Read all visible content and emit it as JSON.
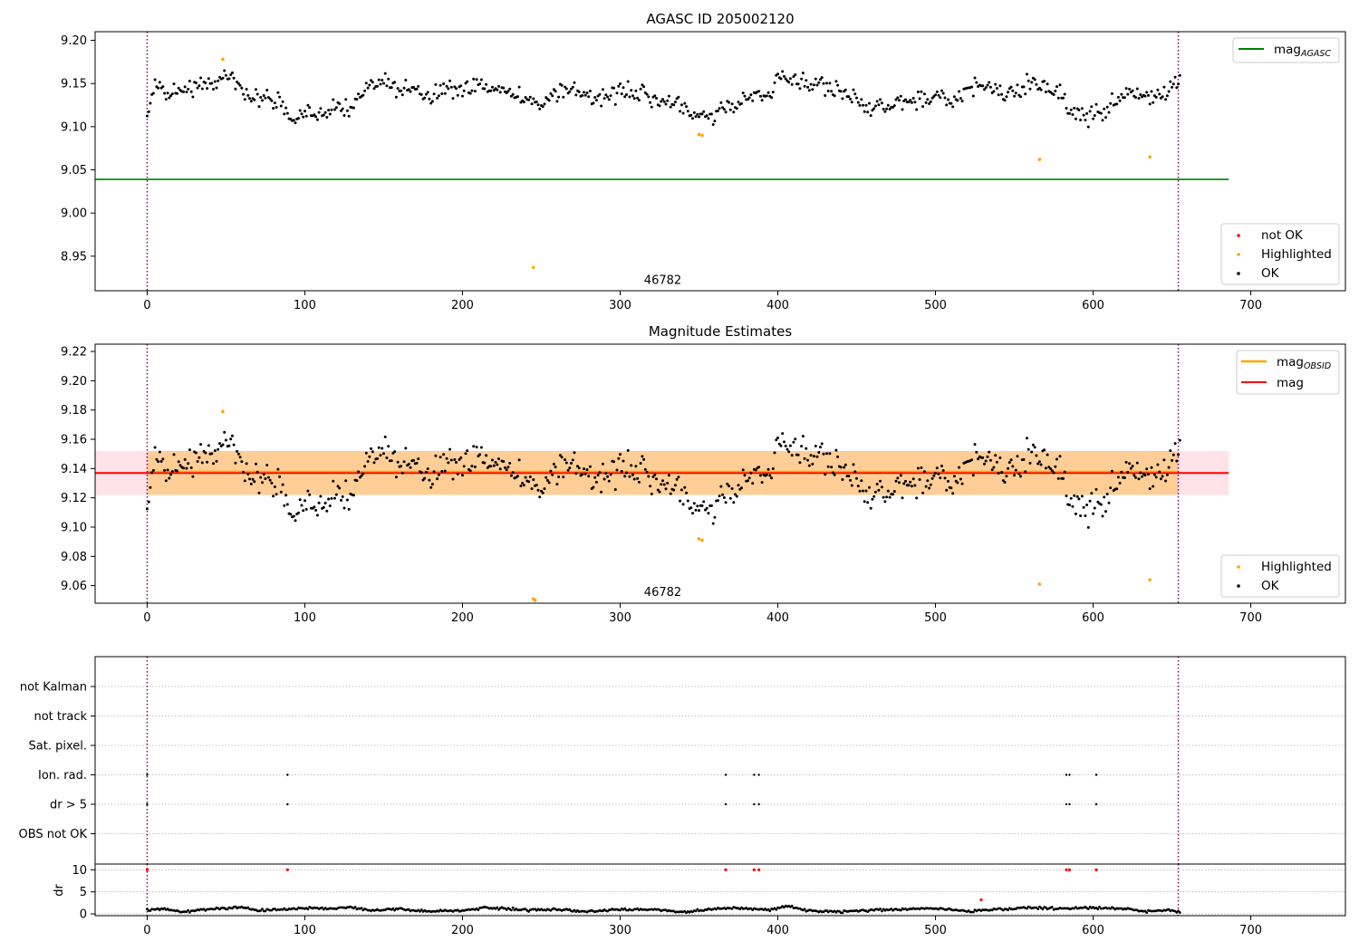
{
  "chart_data": [
    {
      "id": "mag_top",
      "type": "scatter",
      "title": "AGASC ID 205002120",
      "xlim": [
        -33,
        760
      ],
      "ylim": [
        8.91,
        9.21
      ],
      "xticks": [
        0,
        100,
        200,
        300,
        400,
        500,
        600,
        700
      ],
      "yticks": [
        8.95,
        9.0,
        9.05,
        9.1,
        9.15,
        9.2
      ],
      "ytick_labels": [
        "8.95",
        "9.00",
        "9.05",
        "9.10",
        "9.15",
        "9.20"
      ],
      "vlines": [
        0,
        654
      ],
      "hlines": [
        {
          "name": "mag_AGASC",
          "y": 9.039,
          "x_range": [
            -33,
            686
          ],
          "color": "#008000"
        }
      ],
      "ok_series": {
        "name": "OK",
        "color": "#000000",
        "x_range": [
          0,
          655
        ],
        "count": 656,
        "profile_x": [
          0,
          5,
          15,
          25,
          35,
          45,
          55,
          65,
          75,
          85,
          92,
          100,
          110,
          120,
          130,
          140,
          150,
          160,
          170,
          180,
          190,
          200,
          210,
          220,
          230,
          240,
          250,
          260,
          270,
          280,
          290,
          300,
          310,
          320,
          330,
          340,
          345,
          355,
          365,
          375,
          385,
          395,
          400,
          410,
          420,
          430,
          440,
          450,
          460,
          470,
          480,
          490,
          500,
          510,
          520,
          530,
          540,
          550,
          560,
          570,
          580,
          585,
          595,
          605,
          615,
          625,
          635,
          645,
          650,
          655
        ],
        "profile_y": [
          9.118,
          9.15,
          9.135,
          9.145,
          9.148,
          9.152,
          9.155,
          9.135,
          9.135,
          9.128,
          9.108,
          9.118,
          9.112,
          9.12,
          9.12,
          9.148,
          9.155,
          9.14,
          9.142,
          9.135,
          9.14,
          9.142,
          9.148,
          9.142,
          9.142,
          9.132,
          9.128,
          9.138,
          9.148,
          9.128,
          9.135,
          9.142,
          9.138,
          9.132,
          9.128,
          9.125,
          9.115,
          9.112,
          9.12,
          9.128,
          9.138,
          9.135,
          9.152,
          9.155,
          9.15,
          9.148,
          9.14,
          9.132,
          9.12,
          9.125,
          9.128,
          9.132,
          9.135,
          9.128,
          9.145,
          9.15,
          9.14,
          9.138,
          9.155,
          9.148,
          9.138,
          9.118,
          9.112,
          9.115,
          9.13,
          9.142,
          9.135,
          9.138,
          9.152,
          9.152
        ],
        "scatter_amplitude": 0.008,
        "seed": 205002120
      },
      "highlighted_points": {
        "name": "Highlighted",
        "color": "#ffa500",
        "x": [
          48,
          350,
          352,
          245,
          566,
          636
        ],
        "y": [
          9.178,
          9.091,
          9.09,
          8.937,
          9.062,
          9.065
        ]
      },
      "annotations": [
        {
          "text": "46782",
          "x": 327,
          "y": 8.918
        }
      ],
      "legend_upper": {
        "position": "upper right",
        "entries": [
          {
            "label": "mag",
            "subscript": "AGASC",
            "color": "#008000",
            "marker": "line"
          }
        ]
      },
      "legend_lower": {
        "position": "lower right",
        "entries": [
          {
            "label": "not OK",
            "color": "#ff0000",
            "marker": "dot"
          },
          {
            "label": "Highlighted",
            "color": "#ffa500",
            "marker": "dot"
          },
          {
            "label": "OK",
            "color": "#000000",
            "marker": "dot"
          }
        ]
      }
    },
    {
      "id": "mag_estimates",
      "type": "scatter",
      "title": "Magnitude Estimates",
      "xlim": [
        -33,
        760
      ],
      "ylim": [
        9.048,
        9.225
      ],
      "xticks": [
        0,
        100,
        200,
        300,
        400,
        500,
        600,
        700
      ],
      "yticks": [
        9.06,
        9.08,
        9.1,
        9.12,
        9.14,
        9.16,
        9.18,
        9.2,
        9.22
      ],
      "ytick_labels": [
        "9.06",
        "9.08",
        "9.10",
        "9.12",
        "9.14",
        "9.16",
        "9.18",
        "9.20",
        "9.22"
      ],
      "vlines": [
        0,
        654
      ],
      "bands": [
        {
          "name": "mag range",
          "y_range": [
            9.122,
            9.152
          ],
          "x_range": [
            -33,
            686
          ],
          "color": "#ffc0cb"
        },
        {
          "name": "mag_OBSID range",
          "y_range": [
            9.122,
            9.152
          ],
          "x_range": [
            0,
            654
          ],
          "color": "#ffa500"
        }
      ],
      "hlines": [
        {
          "name": "mag",
          "y": 9.137,
          "x_range": [
            -33,
            686
          ],
          "color": "#ff0000"
        },
        {
          "name": "mag_OBSID",
          "y": 9.138,
          "x_range": [
            0,
            654
          ],
          "color": "#ffa500"
        }
      ],
      "ok_series": {
        "name": "OK",
        "color": "#000000",
        "same_as": "mag_top"
      },
      "highlighted_points": {
        "name": "Highlighted",
        "color": "#ffa500",
        "x": [
          48,
          350,
          352,
          245,
          246,
          566,
          636
        ],
        "y": [
          9.179,
          9.092,
          9.091,
          9.051,
          9.05,
          9.061,
          9.064
        ]
      },
      "annotations": [
        {
          "text": "46782",
          "x": 327,
          "y": 9.053
        }
      ],
      "legend_upper": {
        "position": "upper right",
        "entries": [
          {
            "label": "mag",
            "subscript": "OBSID",
            "color": "#ffa500",
            "marker": "line"
          },
          {
            "label": "mag",
            "subscript": "",
            "color": "#ff0000",
            "marker": "line"
          }
        ]
      },
      "legend_lower": {
        "position": "lower right",
        "entries": [
          {
            "label": "Highlighted",
            "color": "#ffa500",
            "marker": "dot"
          },
          {
            "label": "OK",
            "color": "#000000",
            "marker": "dot"
          }
        ]
      }
    },
    {
      "id": "flags",
      "type": "scatter",
      "xlim": [
        -33,
        760
      ],
      "categories": [
        "not Kalman",
        "not track",
        "Sat. pixel.",
        "Ion. rad.",
        "dr > 5",
        "OBS not OK"
      ],
      "vlines": [
        0,
        654
      ],
      "points": [
        {
          "category": "Ion. rad.",
          "x": [
            0,
            89,
            367,
            385,
            388,
            583,
            585,
            602
          ]
        },
        {
          "category": "dr > 5",
          "x": [
            0,
            89,
            367,
            385,
            388,
            583,
            585,
            602
          ]
        }
      ],
      "color": "#000000"
    },
    {
      "id": "dr",
      "type": "scatter",
      "ylabel": "dr",
      "xlim": [
        -33,
        760
      ],
      "ylim": [
        -0.4,
        11.3
      ],
      "xticks": [
        0,
        100,
        200,
        300,
        400,
        500,
        600,
        700
      ],
      "yticks": [
        0,
        5,
        10
      ],
      "ytick_labels": [
        "0",
        "5",
        "10"
      ],
      "vlines": [
        0,
        654
      ],
      "ok_series": {
        "name": "dr",
        "color": "#000000",
        "x_range": [
          0,
          655
        ],
        "count": 656,
        "profile_x": [
          0,
          15,
          22,
          35,
          50,
          60,
          70,
          85,
          100,
          120,
          130,
          140,
          160,
          180,
          200,
          215,
          240,
          260,
          280,
          300,
          320,
          340,
          365,
          380,
          395,
          405,
          420,
          440,
          460,
          480,
          500,
          520,
          540,
          560,
          580,
          600,
          620,
          630,
          650,
          655
        ],
        "profile_y": [
          1.0,
          1.1,
          0.4,
          1.0,
          1.2,
          1.6,
          0.8,
          1.0,
          1.3,
          1.2,
          1.5,
          0.8,
          1.1,
          0.6,
          0.7,
          1.4,
          0.9,
          1.0,
          0.5,
          1.1,
          1.0,
          0.4,
          1.3,
          1.2,
          0.9,
          1.8,
          0.7,
          0.5,
          0.8,
          1.0,
          1.3,
          0.6,
          1.0,
          1.4,
          1.2,
          1.4,
          1.2,
          0.6,
          0.8,
          0.3
        ],
        "scatter_amplitude": 0.2,
        "seed": 46782
      },
      "flagged_points": {
        "name": "not OK",
        "color": "#ff0000",
        "x": [
          0,
          89,
          367,
          385,
          388,
          583,
          585,
          602,
          529
        ],
        "y": [
          10,
          10,
          10,
          10,
          10,
          10,
          10,
          10,
          3.2
        ]
      }
    }
  ]
}
